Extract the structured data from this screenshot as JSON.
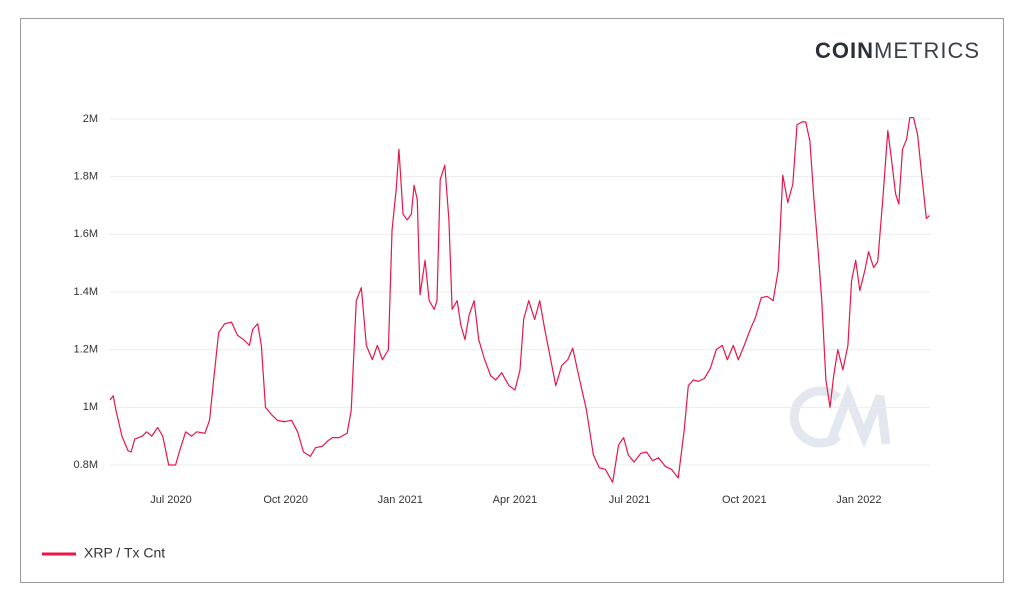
{
  "logo": {
    "bold": "COIN",
    "light": "METRICS"
  },
  "chart_data": {
    "type": "line",
    "xlim": [
      2020.367,
      2022.155
    ],
    "ylim": [
      0.75,
      2.05
    ],
    "xticks": [
      {
        "value": 2020.5,
        "label": "Jul 2020"
      },
      {
        "value": 2020.75,
        "label": "Oct 2020"
      },
      {
        "value": 2021.0,
        "label": "Jan 2021"
      },
      {
        "value": 2021.25,
        "label": "Apr 2021"
      },
      {
        "value": 2021.5,
        "label": "Jul 2021"
      },
      {
        "value": 2021.75,
        "label": "Oct 2021"
      },
      {
        "value": 2022.0,
        "label": "Jan 2022"
      }
    ],
    "yticks": [
      {
        "value": 0.8,
        "label": "0.8M"
      },
      {
        "value": 1,
        "label": "1M"
      },
      {
        "value": 1.2,
        "label": "1.2M"
      },
      {
        "value": 1.4,
        "label": "1.4M"
      },
      {
        "value": 1.6,
        "label": "1.6M"
      },
      {
        "value": 1.8,
        "label": "1.8M"
      },
      {
        "value": 2,
        "label": "2M"
      }
    ],
    "grid": true,
    "legend": "bottom-left",
    "x": [
      2020.367,
      2020.374,
      2020.38,
      2020.393,
      2020.406,
      2020.413,
      2020.421,
      2020.437,
      2020.447,
      2020.458,
      2020.471,
      2020.482,
      2020.495,
      2020.51,
      2020.519,
      2020.532,
      2020.545,
      2020.556,
      2020.574,
      2020.584,
      2020.593,
      2020.604,
      2020.617,
      2020.632,
      2020.645,
      2020.658,
      2020.671,
      2020.678,
      2020.689,
      2020.697,
      2020.706,
      2020.719,
      2020.732,
      2020.747,
      2020.763,
      2020.776,
      2020.789,
      2020.804,
      2020.815,
      2020.83,
      2020.843,
      2020.852,
      2020.867,
      2020.884,
      2020.893,
      2020.904,
      2020.915,
      2020.926,
      2020.939,
      2020.95,
      2020.961,
      2020.974,
      2020.982,
      2020.991,
      2020.997,
      2021.006,
      2021.015,
      2021.024,
      2021.03,
      2021.037,
      2021.043,
      2021.054,
      2021.063,
      2021.074,
      2021.08,
      2021.087,
      2021.097,
      2021.106,
      2021.113,
      2021.124,
      2021.132,
      2021.141,
      2021.15,
      2021.161,
      2021.171,
      2021.184,
      2021.197,
      2021.208,
      2021.221,
      2021.237,
      2021.25,
      2021.261,
      2021.269,
      2021.28,
      2021.293,
      2021.304,
      2021.315,
      2021.328,
      2021.339,
      2021.352,
      2021.365,
      2021.376,
      2021.389,
      2021.406,
      2021.421,
      2021.434,
      2021.447,
      2021.463,
      2021.476,
      2021.487,
      2021.497,
      2021.51,
      2021.524,
      2021.537,
      2021.55,
      2021.563,
      2021.578,
      2021.591,
      2021.606,
      2021.619,
      2021.628,
      2021.639,
      2021.65,
      2021.663,
      2021.676,
      2021.689,
      2021.702,
      2021.713,
      2021.726,
      2021.737,
      2021.75,
      2021.763,
      2021.774,
      2021.787,
      2021.8,
      2021.813,
      2021.824,
      2021.834,
      2021.845,
      2021.856,
      2021.865,
      2021.876,
      2021.884,
      2021.893,
      2021.902,
      2021.911,
      2021.919,
      2021.928,
      2021.937,
      2021.945,
      2021.954,
      2021.965,
      2021.976,
      2021.984,
      2021.993,
      2022.002,
      2022.013,
      2022.021,
      2022.032,
      2022.041,
      2022.052,
      2022.063,
      2022.071,
      2022.08,
      2022.087,
      2022.095,
      2022.104,
      2022.111,
      2022.119,
      2022.128,
      2022.137,
      2022.147,
      2022.154
    ],
    "series": [
      {
        "name": "XRP / Tx Cnt",
        "color": "#e8164a",
        "values": [
          1.025,
          1.04,
          0.99,
          0.9,
          0.85,
          0.845,
          0.89,
          0.9,
          0.915,
          0.9,
          0.93,
          0.9,
          0.8,
          0.8,
          0.85,
          0.915,
          0.9,
          0.915,
          0.91,
          0.955,
          1.095,
          1.26,
          1.29,
          1.295,
          1.25,
          1.235,
          1.215,
          1.27,
          1.29,
          1.215,
          1.0,
          0.975,
          0.955,
          0.95,
          0.955,
          0.915,
          0.845,
          0.83,
          0.86,
          0.865,
          0.885,
          0.895,
          0.895,
          0.91,
          0.99,
          1.37,
          1.415,
          1.215,
          1.165,
          1.215,
          1.165,
          1.2,
          1.615,
          1.755,
          1.895,
          1.67,
          1.65,
          1.67,
          1.77,
          1.72,
          1.39,
          1.51,
          1.37,
          1.34,
          1.37,
          1.79,
          1.84,
          1.65,
          1.34,
          1.37,
          1.285,
          1.235,
          1.32,
          1.37,
          1.235,
          1.165,
          1.11,
          1.095,
          1.12,
          1.075,
          1.06,
          1.13,
          1.305,
          1.37,
          1.305,
          1.37,
          1.27,
          1.165,
          1.075,
          1.145,
          1.165,
          1.205,
          1.11,
          0.99,
          0.835,
          0.79,
          0.785,
          0.74,
          0.87,
          0.895,
          0.835,
          0.81,
          0.84,
          0.845,
          0.815,
          0.825,
          0.795,
          0.785,
          0.755,
          0.92,
          1.075,
          1.095,
          1.09,
          1.1,
          1.135,
          1.2,
          1.215,
          1.165,
          1.215,
          1.165,
          1.215,
          1.27,
          1.31,
          1.38,
          1.385,
          1.37,
          1.475,
          1.805,
          1.71,
          1.775,
          1.98,
          1.99,
          1.99,
          1.925,
          1.72,
          1.545,
          1.37,
          1.095,
          1.0,
          1.11,
          1.2,
          1.13,
          1.215,
          1.44,
          1.51,
          1.405,
          1.475,
          1.54,
          1.485,
          1.505,
          1.72,
          1.96,
          1.86,
          1.74,
          1.705,
          1.895,
          1.93,
          2.005,
          2.005,
          1.945,
          1.805,
          1.655,
          1.665
        ]
      }
    ]
  }
}
